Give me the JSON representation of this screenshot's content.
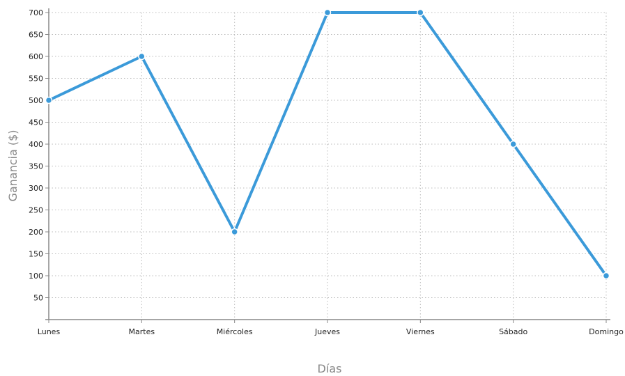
{
  "chart_data": {
    "type": "line",
    "title": "",
    "xlabel": "Días",
    "ylabel": "Ganancia ($)",
    "categories": [
      "Lunes",
      "Martes",
      "Miércoles",
      "Jueves",
      "Viernes",
      "Sábado",
      "Domingo"
    ],
    "values": [
      500,
      600,
      200,
      700,
      700,
      400,
      100
    ],
    "ylim": [
      0,
      700
    ],
    "yticks": [
      50,
      100,
      150,
      200,
      250,
      300,
      350,
      400,
      450,
      500,
      550,
      600,
      650,
      700
    ],
    "grid": true,
    "legend": "none",
    "colors": {
      "line": "#3b9ad9",
      "grid": "#bbbbbb",
      "axis": "#888888"
    }
  }
}
